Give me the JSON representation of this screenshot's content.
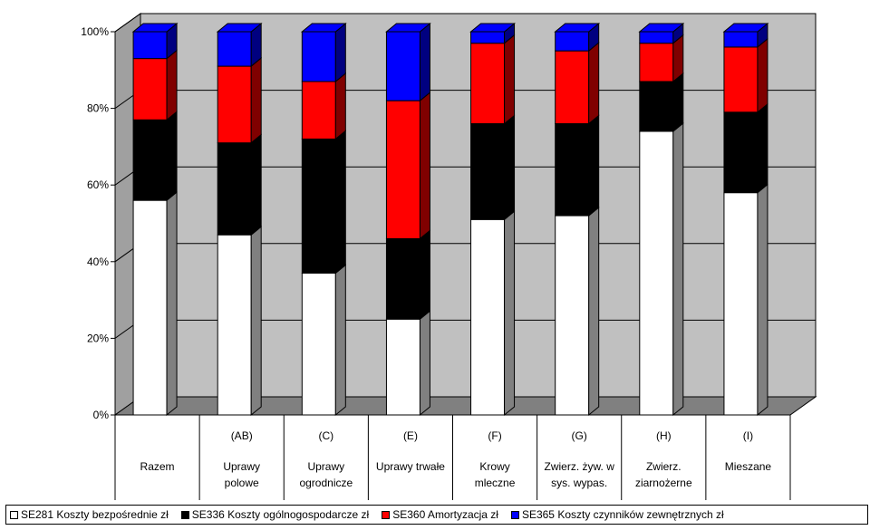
{
  "chart_data": {
    "type": "bar",
    "stacked": true,
    "percent": true,
    "three_d": true,
    "categories": [
      {
        "code": "",
        "line1": "Razem",
        "line2": ""
      },
      {
        "code": "(AB)",
        "line1": "Uprawy",
        "line2": "polowe"
      },
      {
        "code": "(C)",
        "line1": "Uprawy",
        "line2": "ogrodnicze"
      },
      {
        "code": "(E)",
        "line1": "Uprawy trwałe",
        "line2": ""
      },
      {
        "code": "(F)",
        "line1": "Krowy",
        "line2": "mleczne"
      },
      {
        "code": "(G)",
        "line1": "Zwierz. żyw. w",
        "line2": "sys. wypas."
      },
      {
        "code": "(H)",
        "line1": "Zwierz.",
        "line2": "ziarnożerne"
      },
      {
        "code": "(I)",
        "line1": "Mieszane",
        "line2": ""
      }
    ],
    "series": [
      {
        "name": "SE281 Koszty bezpośrednie zł",
        "color": "#ffffff",
        "side": "#808080",
        "values": [
          56,
          47,
          37,
          25,
          51,
          52,
          74,
          58
        ]
      },
      {
        "name": "SE336 Koszty ogólnogospodarcze zł",
        "color": "#000000",
        "side": "#000000",
        "values": [
          21,
          24,
          35,
          21,
          25,
          24,
          13,
          21
        ]
      },
      {
        "name": "SE360 Amortyzacja zł",
        "color": "#ff0000",
        "side": "#800000",
        "values": [
          16,
          20,
          15,
          36,
          21,
          19,
          10,
          17
        ]
      },
      {
        "name": "SE365 Koszty czynników zewnętrznych zł",
        "color": "#0000ff",
        "side": "#000080",
        "values": [
          7,
          9,
          13,
          18,
          3,
          5,
          3,
          4
        ]
      }
    ],
    "yticks": [
      "0%",
      "20%",
      "40%",
      "60%",
      "80%",
      "100%"
    ],
    "ylim": [
      0,
      100
    ],
    "grid": true,
    "legend_position": "bottom"
  }
}
